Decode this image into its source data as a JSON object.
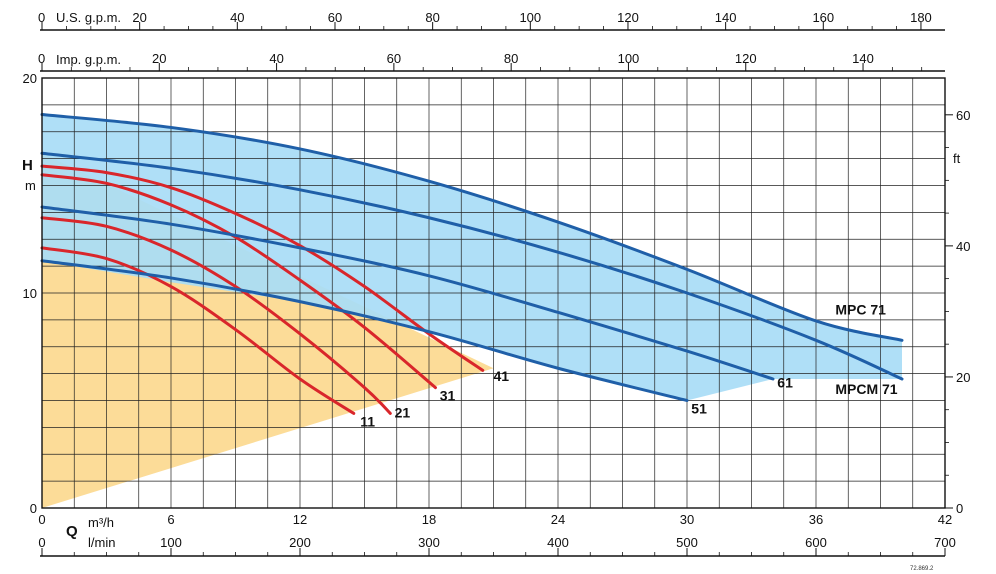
{
  "chart_data": {
    "type": "line",
    "axes": {
      "us_gpm": {
        "label": "U.S. g.p.m.",
        "zero": "0",
        "ticks": [
          "20",
          "40",
          "60",
          "80",
          "100",
          "120",
          "140",
          "160",
          "180"
        ]
      },
      "imp_gpm": {
        "label": "Imp. g.p.m.",
        "zero": "0",
        "ticks": [
          "20",
          "40",
          "60",
          "80",
          "100",
          "120",
          "140"
        ]
      },
      "q_m3h": {
        "label": "Q",
        "unit": "m³/h",
        "ticks": [
          "0",
          "6",
          "12",
          "18",
          "24",
          "30",
          "36",
          "42"
        ],
        "range": [
          0,
          42
        ]
      },
      "q_lmin": {
        "unit": "l/min",
        "ticks": [
          "0",
          "100",
          "200",
          "300",
          "400",
          "500",
          "600",
          "700"
        ]
      },
      "h_m": {
        "label": "H",
        "unit": "m",
        "ticks": [
          "0",
          "10",
          "20"
        ],
        "range": [
          0,
          20
        ]
      },
      "h_ft": {
        "unit": "ft",
        "ticks": [
          "0",
          "20",
          "40",
          "60"
        ]
      }
    },
    "grid": true,
    "regions": [
      {
        "name": "MPCM area",
        "color": "#fcd98f",
        "points": [
          [
            0,
            0
          ],
          [
            0,
            16.5
          ],
          [
            21,
            6.5
          ]
        ]
      },
      {
        "name": "MPC area",
        "color": "#a8dcf6",
        "points": [
          [
            0,
            18.3
          ],
          [
            6,
            17.7
          ],
          [
            12,
            16.7
          ],
          [
            18,
            15.2
          ],
          [
            24,
            13.3
          ],
          [
            30,
            11.1
          ],
          [
            36,
            8.7
          ],
          [
            40,
            7.8
          ],
          [
            40,
            6.0
          ],
          [
            34,
            6.0
          ],
          [
            30,
            5.0
          ],
          [
            24,
            6.5
          ],
          [
            18,
            8.2
          ],
          [
            12,
            9.6
          ],
          [
            6,
            10.5
          ],
          [
            0,
            11.5
          ]
        ]
      }
    ],
    "series": [
      {
        "name": "11",
        "color": "#d9262b",
        "x": [
          0,
          3,
          6,
          9,
          12,
          14.5
        ],
        "y": [
          12.1,
          11.6,
          10.3,
          8.3,
          6.0,
          4.4
        ]
      },
      {
        "name": "21",
        "color": "#d9262b",
        "x": [
          0,
          3,
          6,
          9,
          12,
          15,
          16.2
        ],
        "y": [
          13.5,
          13.1,
          12.0,
          10.3,
          8.1,
          5.6,
          4.4
        ]
      },
      {
        "name": "31",
        "color": "#d9262b",
        "x": [
          0,
          3,
          6,
          9,
          12,
          15,
          18.3
        ],
        "y": [
          15.5,
          15.1,
          14.1,
          12.6,
          10.6,
          8.4,
          5.6
        ]
      },
      {
        "name": "41",
        "color": "#d9262b",
        "x": [
          0,
          3,
          6,
          9,
          12,
          15,
          18,
          20.5
        ],
        "y": [
          15.9,
          15.6,
          14.9,
          13.7,
          12.2,
          10.3,
          8.1,
          6.4
        ]
      },
      {
        "name": "51",
        "color": "#1f5fa8",
        "x": [
          0,
          6,
          12,
          18,
          24,
          30
        ],
        "y": [
          11.5,
          10.7,
          9.6,
          8.2,
          6.5,
          5.0
        ]
      },
      {
        "name": "61",
        "color": "#1f5fa8",
        "x": [
          0,
          6,
          12,
          18,
          24,
          30,
          34
        ],
        "y": [
          14.0,
          13.2,
          12.1,
          10.8,
          9.1,
          7.3,
          6.0
        ]
      },
      {
        "name": "MPCM 71",
        "color": "#1f5fa8",
        "x": [
          0,
          6,
          12,
          18,
          24,
          30,
          36,
          40
        ],
        "y": [
          16.5,
          15.8,
          14.8,
          13.5,
          11.9,
          10.0,
          7.8,
          6.0
        ]
      },
      {
        "name": "MPC 71",
        "color": "#1f5fa8",
        "x": [
          0,
          6,
          12,
          18,
          24,
          30,
          36,
          40
        ],
        "y": [
          18.3,
          17.7,
          16.7,
          15.2,
          13.3,
          11.1,
          8.7,
          7.8
        ]
      }
    ],
    "labels": [
      {
        "text": "11",
        "x": 14.8,
        "y": 3.8
      },
      {
        "text": "21",
        "x": 16.4,
        "y": 4.2
      },
      {
        "text": "31",
        "x": 18.5,
        "y": 5.0
      },
      {
        "text": "41",
        "x": 21.0,
        "y": 5.9
      },
      {
        "text": "51",
        "x": 30.2,
        "y": 4.4
      },
      {
        "text": "61",
        "x": 34.2,
        "y": 5.6
      },
      {
        "text": "MPC 71",
        "x": 36.9,
        "y": 9.0
      },
      {
        "text": "MPCM 71",
        "x": 36.9,
        "y": 5.3
      }
    ],
    "footnote": "72.869.2"
  }
}
